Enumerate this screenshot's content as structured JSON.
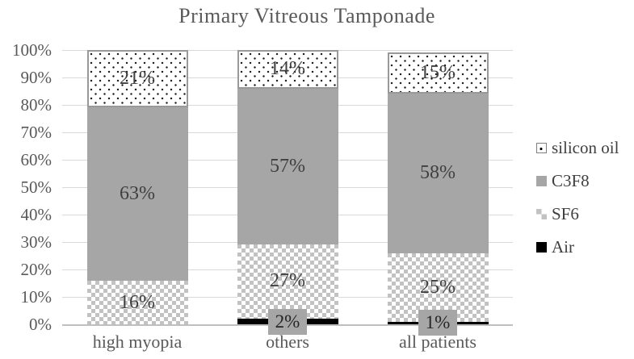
{
  "title": "Primary Vitreous Tamponade",
  "colors": {
    "background": "#ffffff",
    "text": "#595959",
    "label": "#404040",
    "gridline": "#d9d9d9",
    "axisline": "#bfbfbf",
    "c3f8": "#a6a6a6",
    "sf6": "#c2c2c2",
    "air": "#000000",
    "oildot": "#1a1a1a",
    "oilborder": "#999999",
    "airlabelbg": "#a6a6a6",
    "airlabeltext": "#262626"
  },
  "legend": [
    {
      "key": "oil",
      "label": "silicon oil",
      "swatch": "dotted-pattern"
    },
    {
      "key": "c3f8",
      "label": "C3F8",
      "swatch": "solid-gray"
    },
    {
      "key": "sf6",
      "label": "SF6",
      "swatch": "checker-pattern"
    },
    {
      "key": "air",
      "label": "Air",
      "swatch": "solid-black"
    }
  ],
  "chart_data": {
    "type": "bar",
    "stacked": true,
    "title": "Primary Vitreous Tamponade",
    "categories": [
      "high myopia",
      "others",
      "all patients"
    ],
    "series": [
      {
        "name": "Air",
        "key": "air",
        "values": [
          0,
          2,
          1
        ]
      },
      {
        "name": "SF6",
        "key": "sf6",
        "values": [
          16,
          27,
          25
        ]
      },
      {
        "name": "C3F8",
        "key": "c3f8",
        "values": [
          63,
          57,
          58
        ]
      },
      {
        "name": "silicon oil",
        "key": "oil",
        "values": [
          21,
          14,
          15
        ]
      }
    ],
    "stack_order_note": "series listed bottom-to-top",
    "unit": "%",
    "ylim": [
      0,
      100
    ],
    "ytick_step": 10,
    "ytick_labels": [
      "0%",
      "10%",
      "20%",
      "30%",
      "40%",
      "50%",
      "60%",
      "70%",
      "80%",
      "90%",
      "100%"
    ],
    "grid": true,
    "legend_position": "right",
    "data_labels": "shown inside segments; Air labels shown in gray boxes at axis"
  }
}
